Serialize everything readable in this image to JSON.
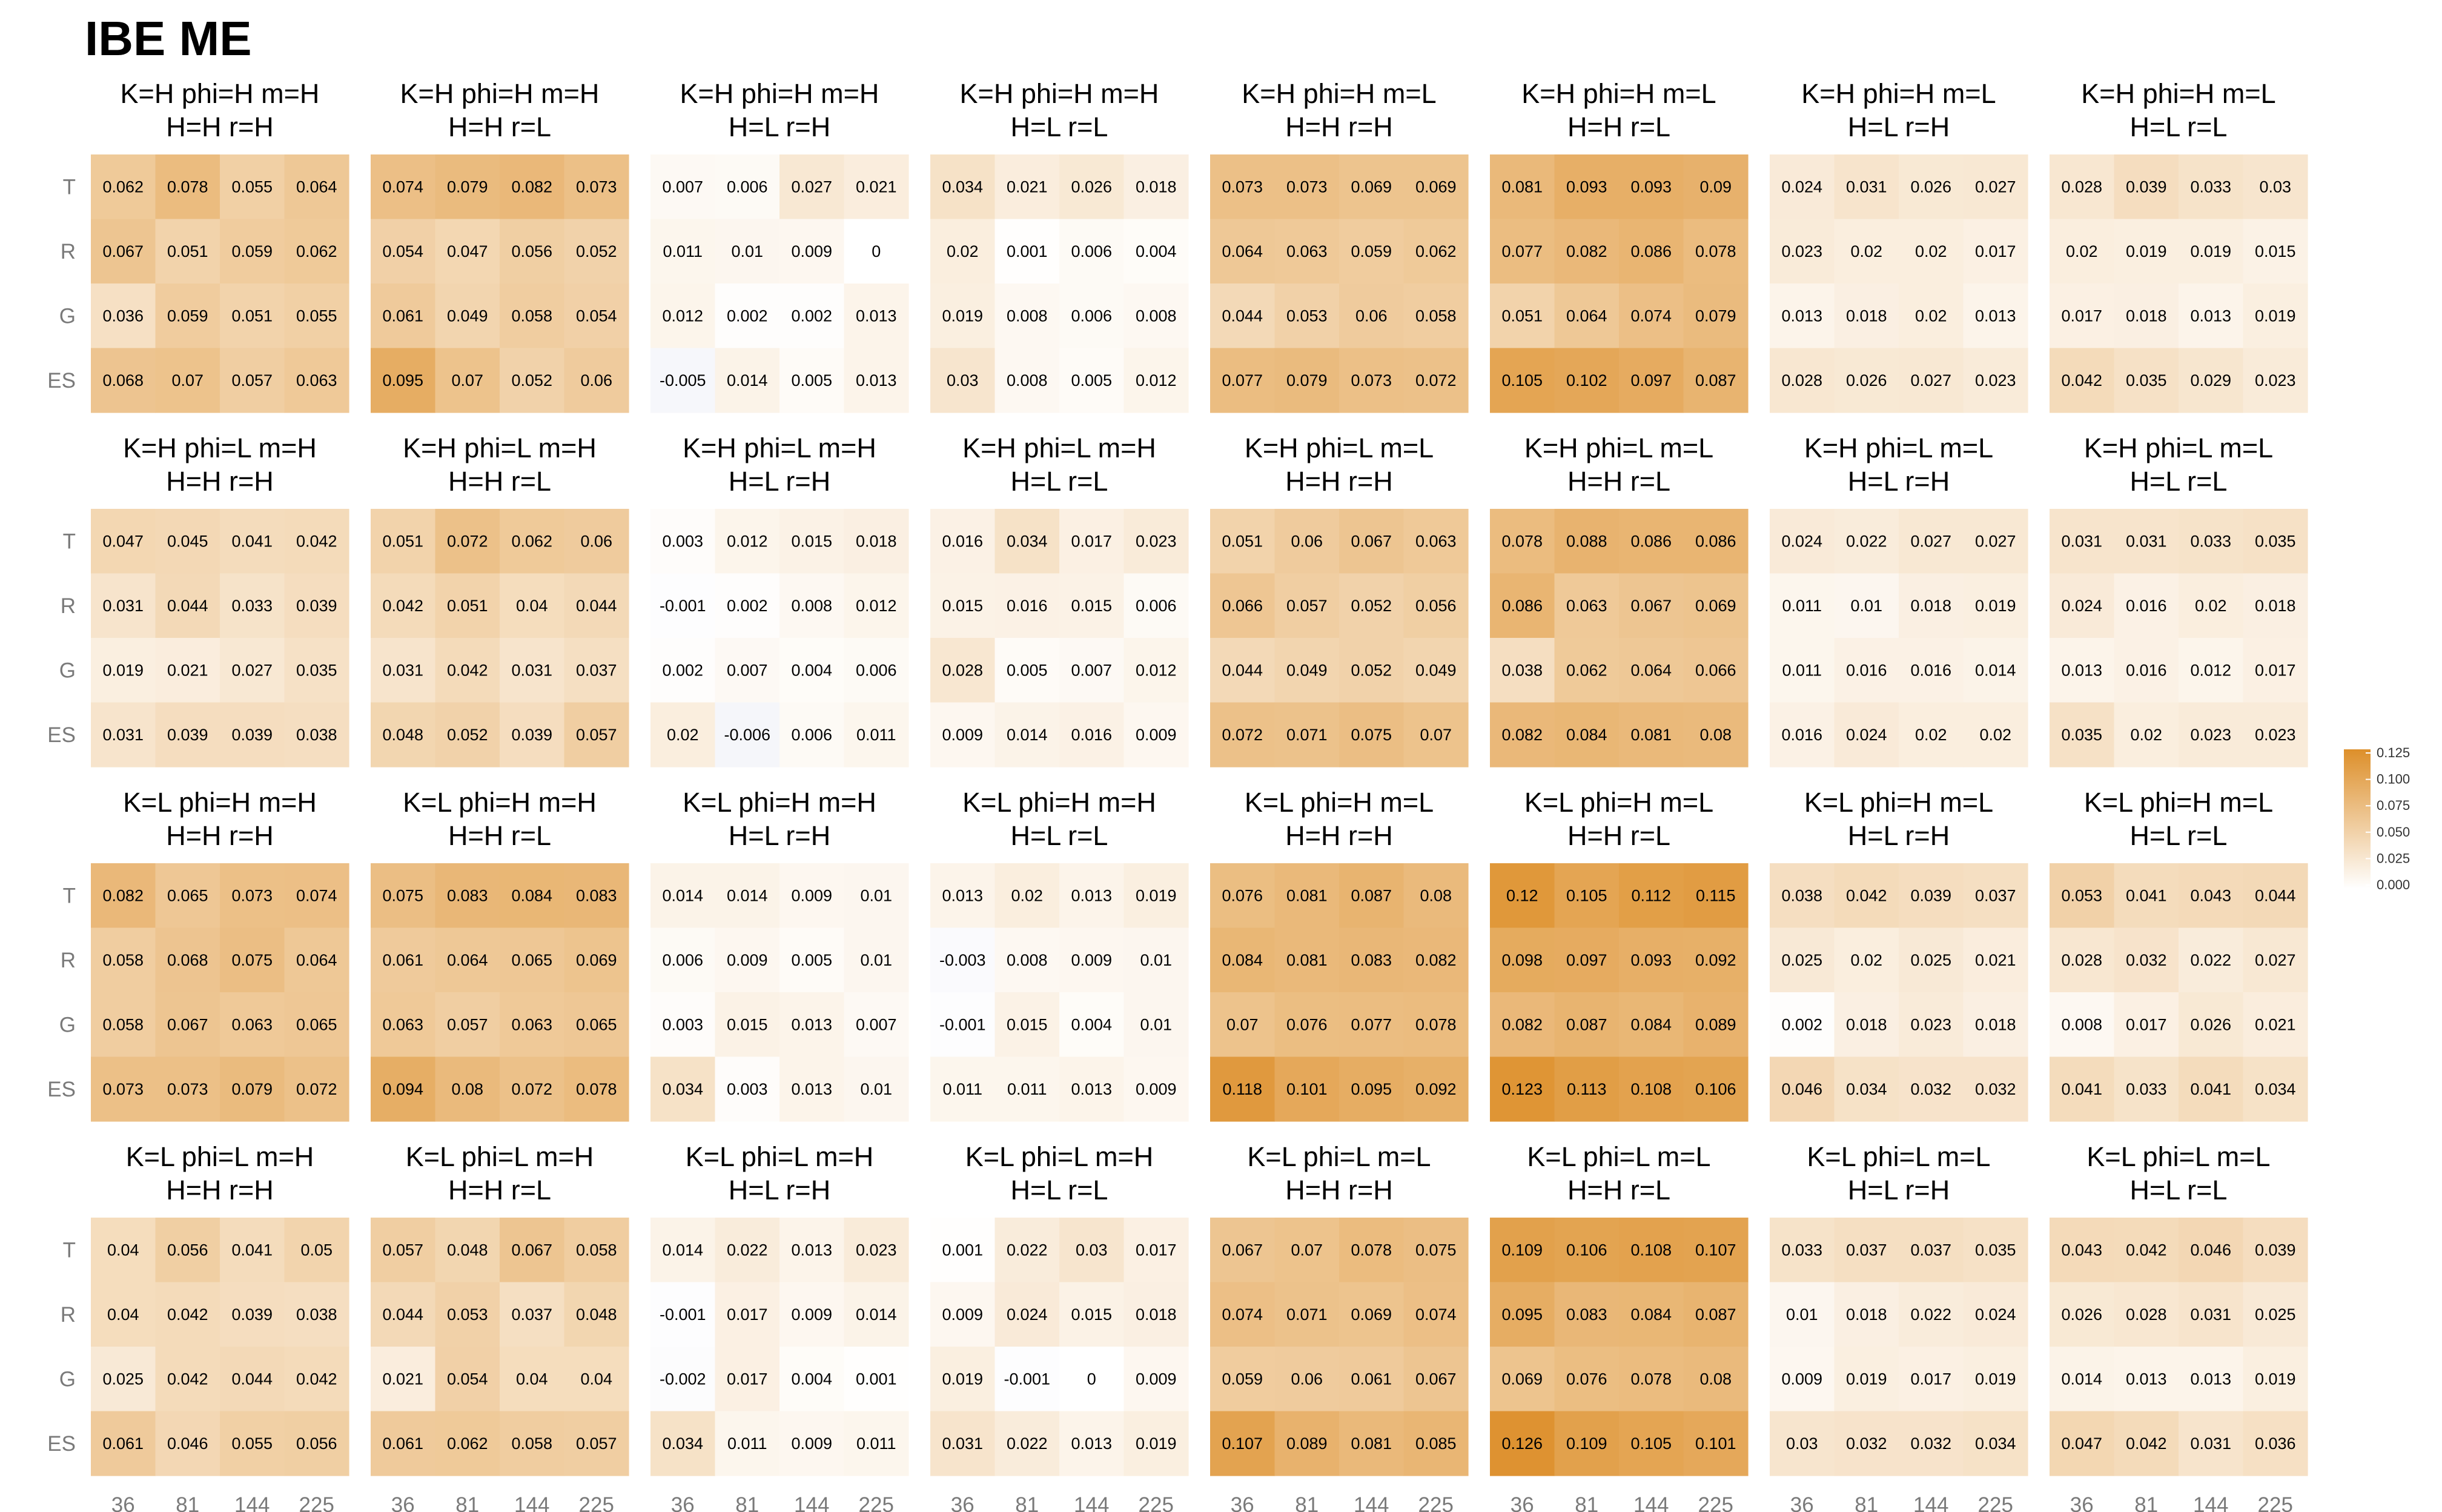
{
  "page": {
    "title": "IBE ME"
  },
  "chart_data": {
    "type": "heatmap",
    "title": "IBE ME",
    "x_categories": [
      "36",
      "81",
      "144",
      "225"
    ],
    "y_categories": [
      "T",
      "R",
      "G",
      "ES"
    ],
    "color_scale": {
      "low": "#ffffff",
      "high": "#dd8f2a",
      "min": 0.0,
      "max": 0.13,
      "ticks": [
        "0.125",
        "0.100",
        "0.075",
        "0.050",
        "0.025",
        "0.000"
      ]
    },
    "panels": [
      {
        "title_line1": "K=H phi=H m=H",
        "title_line2": "H=H r=H",
        "values": [
          [
            0.062,
            0.078,
            0.055,
            0.064
          ],
          [
            0.067,
            0.051,
            0.059,
            0.062
          ],
          [
            0.036,
            0.059,
            0.051,
            0.055
          ],
          [
            0.068,
            0.07,
            0.057,
            0.063
          ]
        ]
      },
      {
        "title_line1": "K=H phi=H m=H",
        "title_line2": "H=H r=L",
        "values": [
          [
            0.074,
            0.079,
            0.082,
            0.073
          ],
          [
            0.054,
            0.047,
            0.056,
            0.052
          ],
          [
            0.061,
            0.049,
            0.058,
            0.054
          ],
          [
            0.095,
            0.07,
            0.052,
            0.06
          ]
        ]
      },
      {
        "title_line1": "K=H phi=H m=H",
        "title_line2": "H=L r=H",
        "values": [
          [
            0.007,
            0.006,
            0.027,
            0.021
          ],
          [
            0.011,
            0.01,
            0.009,
            0
          ],
          [
            0.012,
            0.002,
            0.002,
            0.013
          ],
          [
            -0.005,
            0.014,
            0.005,
            0.013
          ]
        ]
      },
      {
        "title_line1": "K=H phi=H m=H",
        "title_line2": "H=L r=L",
        "values": [
          [
            0.034,
            0.021,
            0.026,
            0.018
          ],
          [
            0.02,
            0.001,
            0.006,
            0.004
          ],
          [
            0.019,
            0.008,
            0.006,
            0.008
          ],
          [
            0.03,
            0.008,
            0.005,
            0.012
          ]
        ]
      },
      {
        "title_line1": "K=H phi=H m=L",
        "title_line2": "H=H r=H",
        "values": [
          [
            0.073,
            0.073,
            0.069,
            0.069
          ],
          [
            0.064,
            0.063,
            0.059,
            0.062
          ],
          [
            0.044,
            0.053,
            0.06,
            0.058
          ],
          [
            0.077,
            0.079,
            0.073,
            0.072
          ]
        ]
      },
      {
        "title_line1": "K=H phi=H m=L",
        "title_line2": "H=H r=L",
        "values": [
          [
            0.081,
            0.093,
            0.093,
            0.09
          ],
          [
            0.077,
            0.082,
            0.086,
            0.078
          ],
          [
            0.051,
            0.064,
            0.074,
            0.079
          ],
          [
            0.105,
            0.102,
            0.097,
            0.087
          ]
        ]
      },
      {
        "title_line1": "K=H phi=H m=L",
        "title_line2": "H=L r=H",
        "values": [
          [
            0.024,
            0.031,
            0.026,
            0.027
          ],
          [
            0.023,
            0.02,
            0.02,
            0.017
          ],
          [
            0.013,
            0.018,
            0.02,
            0.013
          ],
          [
            0.028,
            0.026,
            0.027,
            0.023
          ]
        ]
      },
      {
        "title_line1": "K=H phi=H m=L",
        "title_line2": "H=L r=L",
        "values": [
          [
            0.028,
            0.039,
            0.033,
            0.03
          ],
          [
            0.02,
            0.019,
            0.019,
            0.015
          ],
          [
            0.017,
            0.018,
            0.013,
            0.019
          ],
          [
            0.042,
            0.035,
            0.029,
            0.023
          ]
        ]
      },
      {
        "title_line1": "K=H phi=L m=H",
        "title_line2": "H=H r=H",
        "values": [
          [
            0.047,
            0.045,
            0.041,
            0.042
          ],
          [
            0.031,
            0.044,
            0.033,
            0.039
          ],
          [
            0.019,
            0.021,
            0.027,
            0.035
          ],
          [
            0.031,
            0.039,
            0.039,
            0.038
          ]
        ]
      },
      {
        "title_line1": "K=H phi=L m=H",
        "title_line2": "H=H r=L",
        "values": [
          [
            0.051,
            0.072,
            0.062,
            0.06
          ],
          [
            0.042,
            0.051,
            0.04,
            0.044
          ],
          [
            0.031,
            0.042,
            0.031,
            0.037
          ],
          [
            0.048,
            0.052,
            0.039,
            0.057
          ]
        ]
      },
      {
        "title_line1": "K=H phi=L m=H",
        "title_line2": "H=L r=H",
        "values": [
          [
            0.003,
            0.012,
            0.015,
            0.018
          ],
          [
            -0.001,
            0.002,
            0.008,
            0.012
          ],
          [
            0.002,
            0.007,
            0.004,
            0.006
          ],
          [
            0.02,
            -0.006,
            0.006,
            0.011
          ]
        ]
      },
      {
        "title_line1": "K=H phi=L m=H",
        "title_line2": "H=L r=L",
        "values": [
          [
            0.016,
            0.034,
            0.017,
            0.023
          ],
          [
            0.015,
            0.016,
            0.015,
            0.006
          ],
          [
            0.028,
            0.005,
            0.007,
            0.012
          ],
          [
            0.009,
            0.014,
            0.016,
            0.009
          ]
        ]
      },
      {
        "title_line1": "K=H phi=L m=L",
        "title_line2": "H=H r=H",
        "values": [
          [
            0.051,
            0.06,
            0.067,
            0.063
          ],
          [
            0.066,
            0.057,
            0.052,
            0.056
          ],
          [
            0.044,
            0.049,
            0.052,
            0.049
          ],
          [
            0.072,
            0.071,
            0.075,
            0.07
          ]
        ]
      },
      {
        "title_line1": "K=H phi=L m=L",
        "title_line2": "H=H r=L",
        "values": [
          [
            0.078,
            0.088,
            0.086,
            0.086
          ],
          [
            0.086,
            0.063,
            0.067,
            0.069
          ],
          [
            0.038,
            0.062,
            0.064,
            0.066
          ],
          [
            0.082,
            0.084,
            0.081,
            0.08
          ]
        ]
      },
      {
        "title_line1": "K=H phi=L m=L",
        "title_line2": "H=L r=H",
        "values": [
          [
            0.024,
            0.022,
            0.027,
            0.027
          ],
          [
            0.011,
            0.01,
            0.018,
            0.019
          ],
          [
            0.011,
            0.016,
            0.016,
            0.014
          ],
          [
            0.016,
            0.024,
            0.02,
            0.02
          ]
        ]
      },
      {
        "title_line1": "K=H phi=L m=L",
        "title_line2": "H=L r=L",
        "values": [
          [
            0.031,
            0.031,
            0.033,
            0.035
          ],
          [
            0.024,
            0.016,
            0.02,
            0.018
          ],
          [
            0.013,
            0.016,
            0.012,
            0.017
          ],
          [
            0.035,
            0.02,
            0.023,
            0.023
          ]
        ]
      },
      {
        "title_line1": "K=L phi=H m=H",
        "title_line2": "H=H r=H",
        "values": [
          [
            0.082,
            0.065,
            0.073,
            0.074
          ],
          [
            0.058,
            0.068,
            0.075,
            0.064
          ],
          [
            0.058,
            0.067,
            0.063,
            0.065
          ],
          [
            0.073,
            0.073,
            0.079,
            0.072
          ]
        ]
      },
      {
        "title_line1": "K=L phi=H m=H",
        "title_line2": "H=H r=L",
        "values": [
          [
            0.075,
            0.083,
            0.084,
            0.083
          ],
          [
            0.061,
            0.064,
            0.065,
            0.069
          ],
          [
            0.063,
            0.057,
            0.063,
            0.065
          ],
          [
            0.094,
            0.08,
            0.072,
            0.078
          ]
        ]
      },
      {
        "title_line1": "K=L phi=H m=H",
        "title_line2": "H=L r=H",
        "values": [
          [
            0.014,
            0.014,
            0.009,
            0.01
          ],
          [
            0.006,
            0.009,
            0.005,
            0.01
          ],
          [
            0.003,
            0.015,
            0.013,
            0.007
          ],
          [
            0.034,
            0.003,
            0.013,
            0.01
          ]
        ]
      },
      {
        "title_line1": "K=L phi=H m=H",
        "title_line2": "H=L r=L",
        "values": [
          [
            0.013,
            0.02,
            0.013,
            0.019
          ],
          [
            -0.003,
            0.008,
            0.009,
            0.01
          ],
          [
            -0.001,
            0.015,
            0.004,
            0.01
          ],
          [
            0.011,
            0.011,
            0.013,
            0.009
          ]
        ]
      },
      {
        "title_line1": "K=L phi=H m=L",
        "title_line2": "H=H r=H",
        "values": [
          [
            0.076,
            0.081,
            0.087,
            0.08
          ],
          [
            0.084,
            0.081,
            0.083,
            0.082
          ],
          [
            0.07,
            0.076,
            0.077,
            0.078
          ],
          [
            0.118,
            0.101,
            0.095,
            0.092
          ]
        ]
      },
      {
        "title_line1": "K=L phi=H m=L",
        "title_line2": "H=H r=L",
        "values": [
          [
            0.12,
            0.105,
            0.112,
            0.115
          ],
          [
            0.098,
            0.097,
            0.093,
            0.092
          ],
          [
            0.082,
            0.087,
            0.084,
            0.089
          ],
          [
            0.123,
            0.113,
            0.108,
            0.106
          ]
        ]
      },
      {
        "title_line1": "K=L phi=H m=L",
        "title_line2": "H=L r=H",
        "values": [
          [
            0.038,
            0.042,
            0.039,
            0.037
          ],
          [
            0.025,
            0.02,
            0.025,
            0.021
          ],
          [
            0.002,
            0.018,
            0.023,
            0.018
          ],
          [
            0.046,
            0.034,
            0.032,
            0.032
          ]
        ]
      },
      {
        "title_line1": "K=L phi=H m=L",
        "title_line2": "H=L r=L",
        "values": [
          [
            0.053,
            0.041,
            0.043,
            0.044
          ],
          [
            0.028,
            0.032,
            0.022,
            0.027
          ],
          [
            0.008,
            0.017,
            0.026,
            0.021
          ],
          [
            0.041,
            0.033,
            0.041,
            0.034
          ]
        ]
      },
      {
        "title_line1": "K=L phi=L m=H",
        "title_line2": "H=H r=H",
        "values": [
          [
            0.04,
            0.056,
            0.041,
            0.05
          ],
          [
            0.04,
            0.042,
            0.039,
            0.038
          ],
          [
            0.025,
            0.042,
            0.044,
            0.042
          ],
          [
            0.061,
            0.046,
            0.055,
            0.056
          ]
        ]
      },
      {
        "title_line1": "K=L phi=L m=H",
        "title_line2": "H=H r=L",
        "values": [
          [
            0.057,
            0.048,
            0.067,
            0.058
          ],
          [
            0.044,
            0.053,
            0.037,
            0.048
          ],
          [
            0.021,
            0.054,
            0.04,
            0.04
          ],
          [
            0.061,
            0.062,
            0.058,
            0.057
          ]
        ]
      },
      {
        "title_line1": "K=L phi=L m=H",
        "title_line2": "H=L r=H",
        "values": [
          [
            0.014,
            0.022,
            0.013,
            0.023
          ],
          [
            -0.001,
            0.017,
            0.009,
            0.014
          ],
          [
            -0.002,
            0.017,
            0.004,
            0.001
          ],
          [
            0.034,
            0.011,
            0.009,
            0.011
          ]
        ]
      },
      {
        "title_line1": "K=L phi=L m=H",
        "title_line2": "H=L r=L",
        "values": [
          [
            0.001,
            0.022,
            0.03,
            0.017
          ],
          [
            0.009,
            0.024,
            0.015,
            0.018
          ],
          [
            0.019,
            -0.001,
            0,
            0.009
          ],
          [
            0.031,
            0.022,
            0.013,
            0.019
          ]
        ]
      },
      {
        "title_line1": "K=L phi=L m=L",
        "title_line2": "H=H r=H",
        "values": [
          [
            0.067,
            0.07,
            0.078,
            0.075
          ],
          [
            0.074,
            0.071,
            0.069,
            0.074
          ],
          [
            0.059,
            0.06,
            0.061,
            0.067
          ],
          [
            0.107,
            0.089,
            0.081,
            0.085
          ]
        ]
      },
      {
        "title_line1": "K=L phi=L m=L",
        "title_line2": "H=H r=L",
        "values": [
          [
            0.109,
            0.106,
            0.108,
            0.107
          ],
          [
            0.095,
            0.083,
            0.084,
            0.087
          ],
          [
            0.069,
            0.076,
            0.078,
            0.08
          ],
          [
            0.126,
            0.109,
            0.105,
            0.101
          ]
        ]
      },
      {
        "title_line1": "K=L phi=L m=L",
        "title_line2": "H=L r=H",
        "values": [
          [
            0.033,
            0.037,
            0.037,
            0.035
          ],
          [
            0.01,
            0.018,
            0.022,
            0.024
          ],
          [
            0.009,
            0.019,
            0.017,
            0.019
          ],
          [
            0.03,
            0.032,
            0.032,
            0.034
          ]
        ]
      },
      {
        "title_line1": "K=L phi=L m=L",
        "title_line2": "H=L r=L",
        "values": [
          [
            0.043,
            0.042,
            0.046,
            0.039
          ],
          [
            0.026,
            0.028,
            0.031,
            0.025
          ],
          [
            0.014,
            0.013,
            0.013,
            0.019
          ],
          [
            0.047,
            0.042,
            0.031,
            0.036
          ]
        ]
      }
    ]
  }
}
